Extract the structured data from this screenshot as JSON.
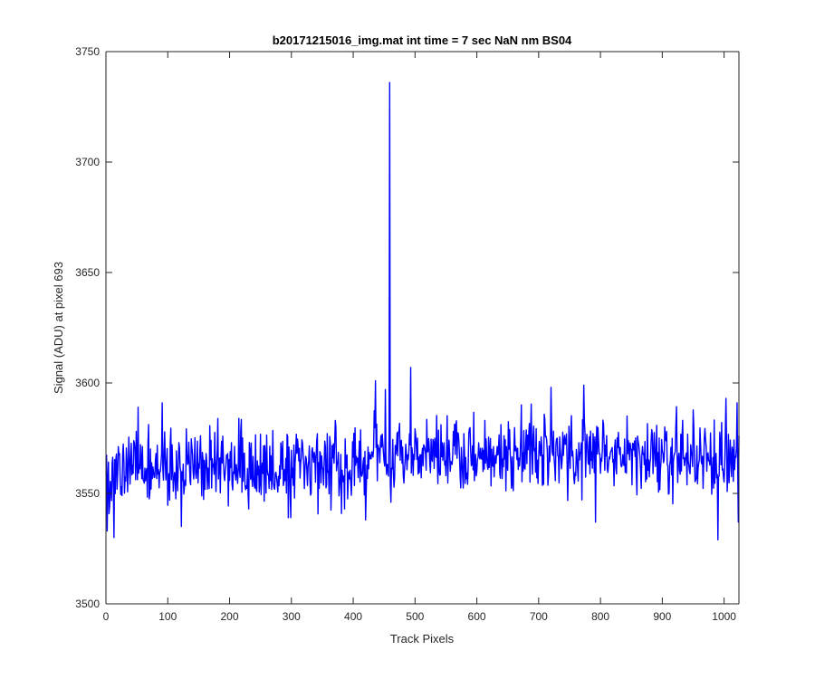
{
  "chart_data": {
    "type": "line",
    "title": "b20171215016_img.mat int time = 7 sec  NaN nm BS04",
    "xlabel": "Track Pixels",
    "ylabel": "Signal (ADU) at pixel 693",
    "xlim": [
      0,
      1024
    ],
    "ylim": [
      3500,
      3750
    ],
    "x_ticks": [
      0,
      100,
      200,
      300,
      400,
      500,
      600,
      700,
      800,
      900,
      1000
    ],
    "y_ticks": [
      3500,
      3550,
      3600,
      3650,
      3700,
      3750
    ],
    "grid": false,
    "box": true,
    "series": [
      {
        "color": "#0000ff",
        "x_start": 1,
        "x_step": 1,
        "count": 1024,
        "baseline_trend": [
          [
            1,
            3561
          ],
          [
            400,
            3563
          ],
          [
            450,
            3567
          ],
          [
            620,
            3568
          ],
          [
            780,
            3569
          ],
          [
            1024,
            3566
          ]
        ],
        "noise_std": 8.5,
        "noise_seed": 693,
        "features": [
          {
            "x": 2,
            "y": 3533
          },
          {
            "x": 13,
            "y": 3530
          },
          {
            "x": 52,
            "y": 3589
          },
          {
            "x": 91,
            "y": 3591
          },
          {
            "x": 122,
            "y": 3535
          },
          {
            "x": 295,
            "y": 3539
          },
          {
            "x": 299,
            "y": 3539
          },
          {
            "x": 420,
            "y": 3538
          },
          {
            "x": 436,
            "y": 3601
          },
          {
            "x": 452,
            "y": 3597
          },
          {
            "x": 459,
            "y": 3736
          },
          {
            "x": 461,
            "y": 3546
          },
          {
            "x": 493,
            "y": 3607
          },
          {
            "x": 720,
            "y": 3598
          },
          {
            "x": 773,
            "y": 3599
          },
          {
            "x": 792,
            "y": 3537
          },
          {
            "x": 990,
            "y": 3529
          },
          {
            "x": 1003,
            "y": 3593
          },
          {
            "x": 1021,
            "y": 3591
          },
          {
            "x": 1023,
            "y": 3537
          }
        ]
      }
    ]
  }
}
